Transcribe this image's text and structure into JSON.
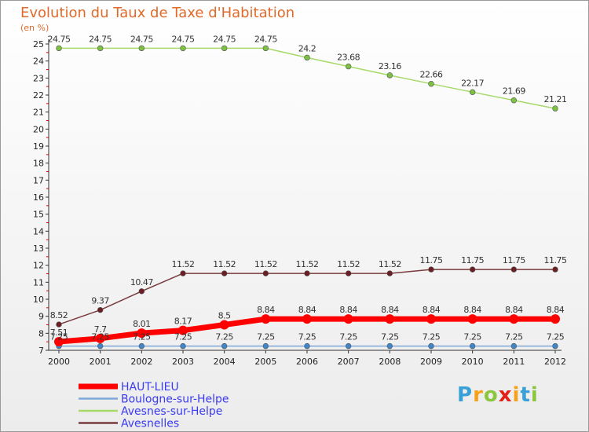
{
  "title": "Evolution du Taux de Taxe d'Habitation",
  "subtitle": "(en %)",
  "logo_text": "Proxiti",
  "chart_data": {
    "type": "line",
    "title": "Evolution du Taux de Taxe d'Habitation",
    "ylabel": "(en %)",
    "x": [
      "2000",
      "2001",
      "2002",
      "2003",
      "2004",
      "2005",
      "2006",
      "2007",
      "2008",
      "2009",
      "2010",
      "2011",
      "2012"
    ],
    "ylim": [
      7,
      25
    ],
    "yticks": [
      "7",
      "8",
      "9",
      "10",
      "11",
      "12",
      "13",
      "14",
      "15",
      "16",
      "17",
      "18",
      "19",
      "20",
      "21",
      "22",
      "23",
      "24",
      "25"
    ],
    "grid": false,
    "legend_position": "bottom-left",
    "series": [
      {
        "name": "HAUT-LIEU",
        "color": "#ff0000",
        "point_color": "#ff0000",
        "values": [
          7.51,
          7.7,
          8.01,
          8.17,
          8.5,
          8.84,
          8.84,
          8.84,
          8.84,
          8.84,
          8.84,
          8.84,
          8.84
        ],
        "labels": [
          "7.51",
          "7.7",
          "8.01",
          "8.17",
          "8.5",
          "8.84",
          "8.84",
          "8.84",
          "8.84",
          "8.84",
          "8.84",
          "8.84",
          "8.84"
        ]
      },
      {
        "name": "Boulogne-sur-Helpe",
        "color": "#7ea8d6",
        "point_color": "#3f86c8",
        "values": [
          7.25,
          7.25,
          7.25,
          7.25,
          7.25,
          7.25,
          7.25,
          7.25,
          7.25,
          7.25,
          7.25,
          7.25,
          7.25
        ],
        "labels": [
          "7.25",
          "7.25",
          "7.25",
          "7.25",
          "7.25",
          "7.25",
          "7.25",
          "7.25",
          "7.25",
          "7.25",
          "7.25",
          "7.25",
          "7.25"
        ]
      },
      {
        "name": "Avesnes-sur-Helpe",
        "color": "#a6d96a",
        "point_color": "#7dc142",
        "values": [
          24.75,
          24.75,
          24.75,
          24.75,
          24.75,
          24.75,
          24.2,
          23.68,
          23.16,
          22.66,
          22.17,
          21.69,
          21.21
        ],
        "labels": [
          "24.75",
          "24.75",
          "24.75",
          "24.75",
          "24.75",
          "24.75",
          "24.2",
          "23.68",
          "23.16",
          "22.66",
          "22.17",
          "21.69",
          "21.21"
        ]
      },
      {
        "name": "Avesnelles",
        "color": "#7a3b3f",
        "point_color": "#6b1f24",
        "values": [
          8.52,
          9.37,
          10.47,
          11.52,
          11.52,
          11.52,
          11.52,
          11.52,
          11.52,
          11.75,
          11.75,
          11.75,
          11.75
        ],
        "labels": [
          "8.52",
          "9.37",
          "10.47",
          "11.52",
          "11.52",
          "11.52",
          "11.52",
          "11.52",
          "11.52",
          "11.75",
          "11.75",
          "11.75",
          "11.75"
        ]
      }
    ]
  }
}
